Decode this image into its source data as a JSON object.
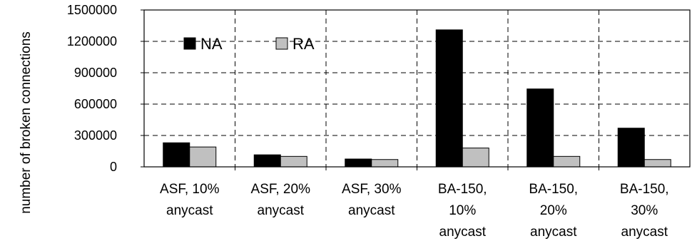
{
  "chart_data": {
    "type": "bar",
    "ylabel": "number of broken connections",
    "xlabel": "",
    "ylim": [
      0,
      1500000
    ],
    "yticks": [
      "0",
      "300000",
      "600000",
      "900000",
      "1200000",
      "1500000"
    ],
    "grid": true,
    "legend_position": "top-left",
    "categories": [
      [
        "ASF, 10%",
        "anycast"
      ],
      [
        "ASF, 20%",
        "anycast"
      ],
      [
        "ASF, 30%",
        "anycast"
      ],
      [
        "BA-150,",
        "10%",
        "anycast"
      ],
      [
        "BA-150,",
        "20%",
        "anycast"
      ],
      [
        "BA-150,",
        "30%",
        "anycast"
      ]
    ],
    "series": [
      {
        "name": "NA",
        "color": "#000000",
        "values": [
          230000,
          115000,
          75000,
          1310000,
          745000,
          370000
        ]
      },
      {
        "name": "RA",
        "color": "#c0c0c0",
        "values": [
          190000,
          100000,
          70000,
          180000,
          100000,
          70000
        ]
      }
    ]
  }
}
